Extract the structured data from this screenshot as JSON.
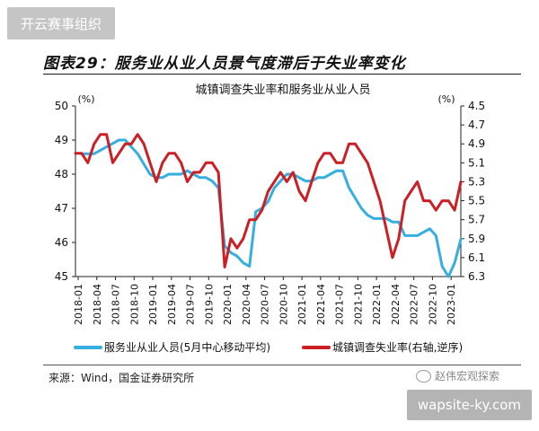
{
  "watermark_top": "开云赛事组织",
  "figure_title": "图表29：服务业从业人员景气度滞后于失业率变化",
  "source_note": "来源：Wind，国金证券研究所",
  "wechat_label": "赵伟宏观探索",
  "watermark_bottom": "wapsite-ky.com",
  "chart_data": {
    "type": "line",
    "title": "城镇调查失业率和服务业从业人员",
    "y_left": {
      "unit": "(%)",
      "ylim": [
        45,
        50
      ],
      "ticks": [
        "45",
        "46",
        "47",
        "48",
        "49",
        "50"
      ]
    },
    "y_right": {
      "unit": "(%)",
      "reversed": true,
      "ylim": [
        4.5,
        6.3
      ],
      "ticks": [
        "4.5",
        "4.7",
        "4.9",
        "5.1",
        "5.3",
        "5.5",
        "5.7",
        "5.9",
        "6.1",
        "6.3"
      ]
    },
    "x_ticks": [
      "2018-01",
      "2018-04",
      "2018-07",
      "2018-10",
      "2019-01",
      "2019-04",
      "2019-07",
      "2019-10",
      "2020-01",
      "2020-04",
      "2020-07",
      "2020-10",
      "2021-01",
      "2021-04",
      "2021-07",
      "2021-10",
      "2022-01",
      "2022-04",
      "2022-07",
      "2022-10",
      "2023-01"
    ],
    "x_start": "2018-01",
    "series": [
      {
        "name": "服务业从业人员(5月中心移动平均)",
        "axis": "left",
        "color": "#35aee0",
        "values": [
          48.6,
          48.6,
          48.6,
          48.7,
          48.8,
          48.9,
          49.0,
          49.0,
          48.8,
          48.6,
          48.3,
          48.0,
          47.9,
          47.9,
          48.0,
          48.0,
          48.0,
          48.1,
          48.0,
          47.9,
          47.9,
          47.8,
          47.6,
          45.9,
          45.7,
          45.6,
          45.4,
          45.3,
          46.9,
          47.0,
          47.2,
          47.6,
          47.8,
          48.0,
          48.0,
          47.9,
          47.8,
          47.8,
          47.9,
          47.9,
          48.0,
          48.1,
          48.1,
          47.6,
          47.3,
          47.0,
          46.8,
          46.7,
          46.7,
          46.7,
          46.6,
          46.6,
          46.2,
          46.2,
          46.2,
          46.3,
          46.4,
          46.2,
          45.3,
          45.0,
          45.4,
          46.1
        ]
      },
      {
        "name": "城镇调查失业率(右轴,逆序)",
        "axis": "right",
        "color": "#cc1f25",
        "values": [
          5.0,
          5.0,
          5.1,
          4.9,
          4.8,
          4.8,
          5.1,
          5.0,
          4.9,
          4.9,
          4.8,
          4.9,
          5.1,
          5.3,
          5.1,
          5.0,
          5.0,
          5.1,
          5.3,
          5.2,
          5.2,
          5.1,
          5.1,
          5.2,
          6.2,
          5.9,
          6.0,
          5.9,
          5.7,
          5.7,
          5.6,
          5.4,
          5.3,
          5.2,
          5.3,
          5.2,
          5.4,
          5.5,
          5.3,
          5.1,
          5.0,
          5.0,
          5.1,
          5.1,
          4.9,
          4.9,
          5.0,
          5.1,
          5.3,
          5.5,
          5.8,
          6.1,
          5.9,
          5.5,
          5.4,
          5.3,
          5.5,
          5.5,
          5.6,
          5.5,
          5.5,
          5.6,
          5.3
        ]
      }
    ]
  }
}
